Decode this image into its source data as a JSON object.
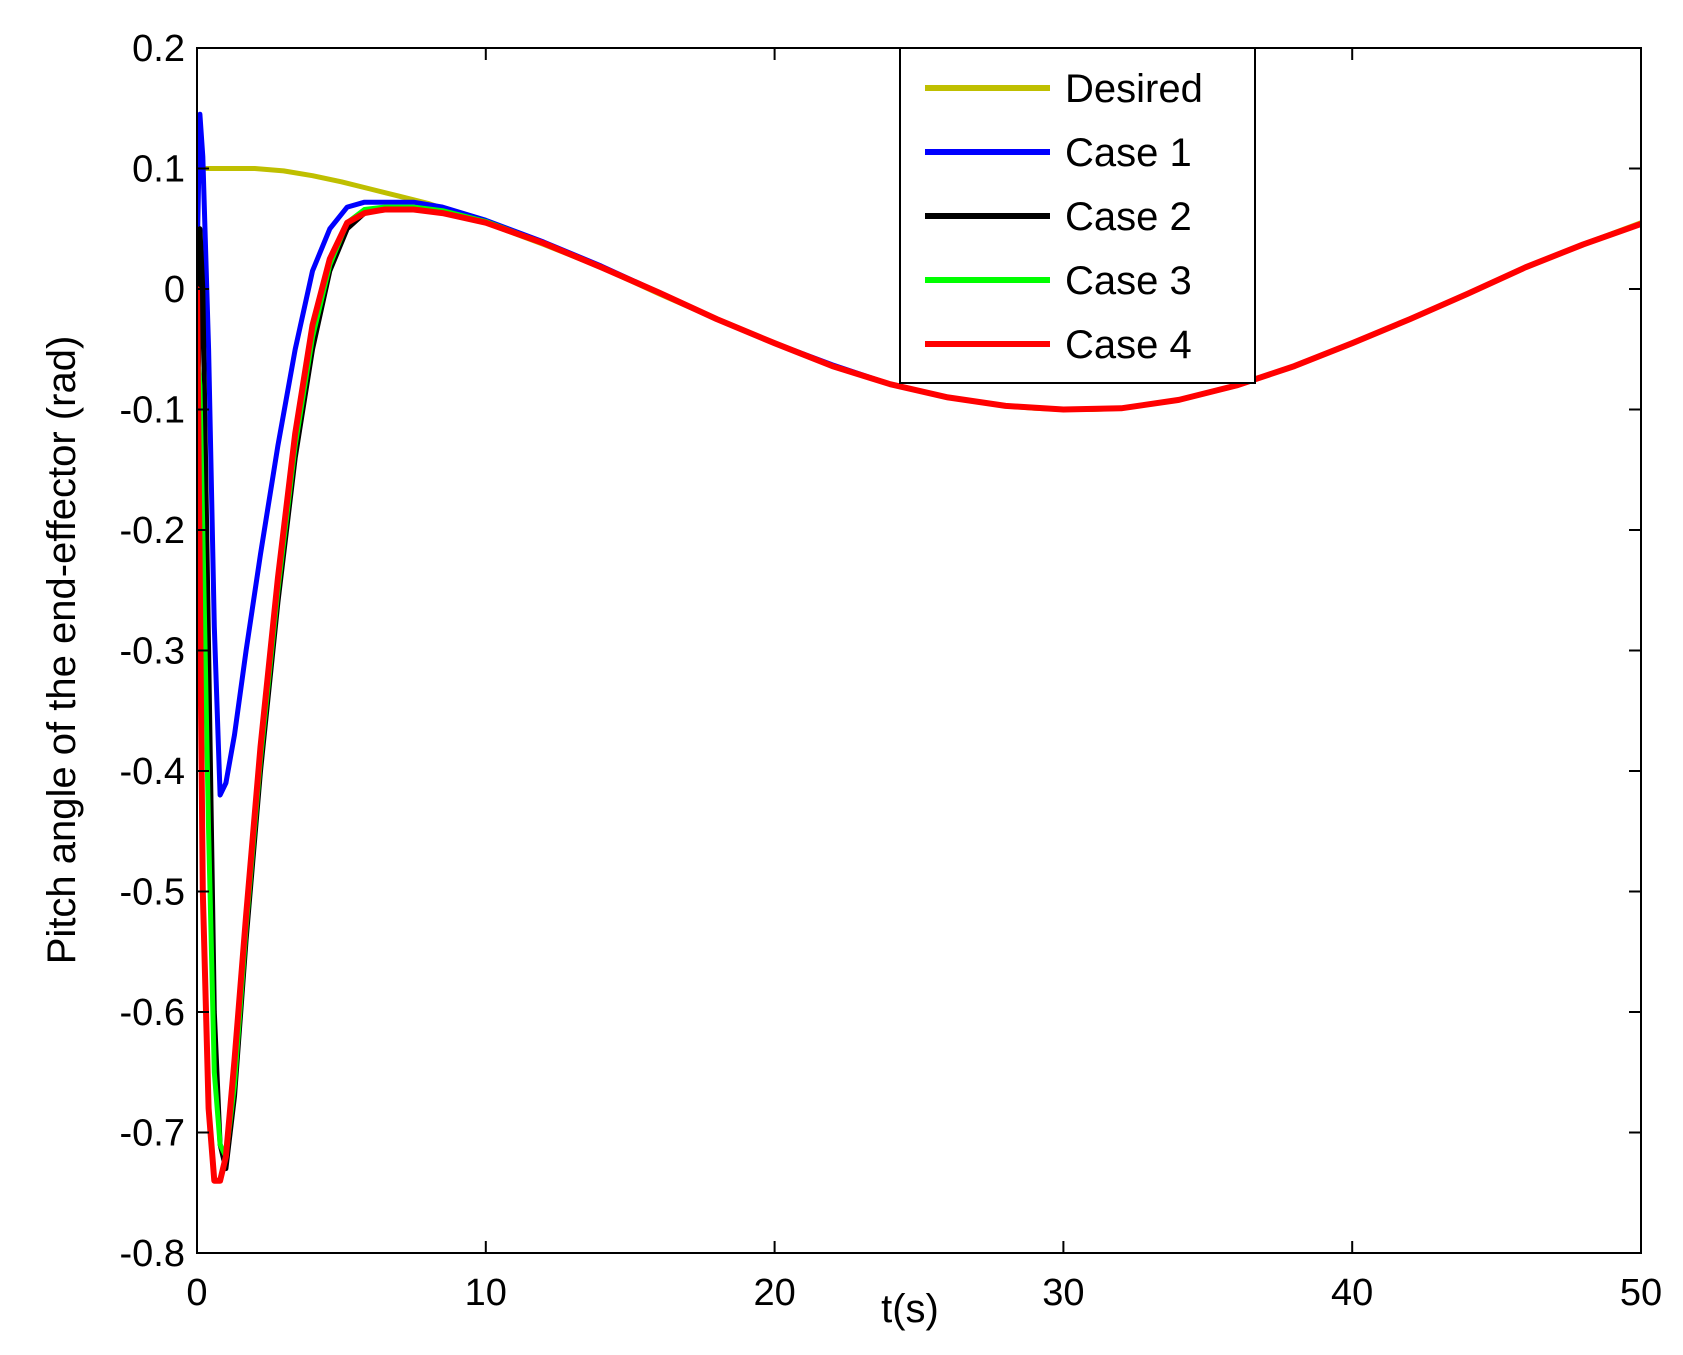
{
  "chart_data": {
    "type": "line",
    "xlabel": "t(s)",
    "ylabel": "Pitch angle of the end-effector (rad)",
    "xlim": [
      0,
      50
    ],
    "ylim": [
      -0.8,
      0.2
    ],
    "xticks": [
      "0",
      "10",
      "20",
      "30",
      "40",
      "50"
    ],
    "yticks": [
      "0.2",
      "0.1",
      "0",
      "-0.1",
      "-0.2",
      "-0.3",
      "-0.4",
      "-0.5",
      "-0.6",
      "-0.7",
      "-0.8"
    ],
    "grid": false,
    "legend_position": "top-center",
    "series": [
      {
        "name": "Desired",
        "color": "#bfbf00",
        "x": [
          0,
          1,
          2,
          3,
          4,
          5,
          6,
          7,
          8,
          9,
          10,
          12,
          14,
          16,
          18,
          20,
          22,
          24,
          26,
          28,
          29,
          30,
          31,
          32,
          34,
          36,
          38,
          40,
          42,
          44,
          46,
          48,
          50
        ],
        "y": [
          0.1,
          0.1,
          0.1,
          0.098,
          0.094,
          0.089,
          0.083,
          0.077,
          0.071,
          0.063,
          0.055,
          0.037,
          0.018,
          -0.004,
          -0.025,
          -0.045,
          -0.064,
          -0.079,
          -0.09,
          -0.097,
          -0.099,
          -0.1,
          -0.1,
          -0.099,
          -0.092,
          -0.08,
          -0.064,
          -0.045,
          -0.025,
          -0.004,
          0.018,
          0.037,
          0.055
        ]
      },
      {
        "name": "Case 1",
        "color": "#0000ff",
        "x": [
          0,
          0.1,
          0.2,
          0.4,
          0.6,
          0.8,
          1.0,
          1.3,
          1.7,
          2.2,
          2.8,
          3.4,
          4.0,
          4.6,
          5.2,
          5.8,
          6.5,
          7.5,
          8.5,
          10,
          12,
          14,
          16,
          18,
          20,
          22,
          24,
          26,
          28,
          30,
          32,
          34,
          36,
          38,
          40,
          42,
          44,
          46,
          48,
          50
        ],
        "y": [
          0.02,
          0.145,
          0.11,
          -0.05,
          -0.28,
          -0.42,
          -0.41,
          -0.37,
          -0.3,
          -0.22,
          -0.13,
          -0.05,
          0.015,
          0.05,
          0.068,
          0.072,
          0.072,
          0.072,
          0.068,
          0.057,
          0.039,
          0.019,
          -0.003,
          -0.025,
          -0.045,
          -0.063,
          -0.079,
          -0.09,
          -0.097,
          -0.1,
          -0.099,
          -0.092,
          -0.08,
          -0.064,
          -0.045,
          -0.025,
          -0.004,
          0.018,
          0.037,
          0.054
        ]
      },
      {
        "name": "Case 2",
        "color": "#000000",
        "x": [
          0,
          0.1,
          0.2,
          0.4,
          0.6,
          0.8,
          1.0,
          1.3,
          1.7,
          2.2,
          2.8,
          3.4,
          4.0,
          4.6,
          5.2,
          5.8,
          6.5,
          7.5,
          8.5,
          10,
          12,
          14,
          16,
          18,
          20,
          22,
          24,
          26,
          28,
          30,
          32,
          34,
          36,
          38,
          40,
          42,
          44,
          46,
          48,
          50
        ],
        "y": [
          -0.2,
          0.05,
          0.0,
          -0.3,
          -0.6,
          -0.71,
          -0.73,
          -0.67,
          -0.54,
          -0.4,
          -0.26,
          -0.14,
          -0.05,
          0.015,
          0.05,
          0.063,
          0.066,
          0.066,
          0.064,
          0.055,
          0.038,
          0.018,
          -0.003,
          -0.025,
          -0.045,
          -0.064,
          -0.079,
          -0.09,
          -0.097,
          -0.1,
          -0.099,
          -0.092,
          -0.08,
          -0.064,
          -0.045,
          -0.025,
          -0.004,
          0.018,
          0.037,
          0.054
        ]
      },
      {
        "name": "Case 3",
        "color": "#00ff00",
        "x": [
          0,
          0.1,
          0.2,
          0.4,
          0.6,
          0.8,
          1.0,
          1.3,
          1.7,
          2.2,
          2.8,
          3.4,
          4.0,
          4.6,
          5.2,
          5.8,
          6.5,
          7.5,
          8.5,
          10,
          12,
          14,
          16,
          18,
          20,
          22,
          24,
          26,
          28,
          30,
          32,
          34,
          36,
          38,
          40,
          42,
          44,
          46,
          48,
          50
        ],
        "y": [
          -0.05,
          -0.08,
          -0.2,
          -0.45,
          -0.65,
          -0.71,
          -0.72,
          -0.66,
          -0.53,
          -0.39,
          -0.25,
          -0.13,
          -0.04,
          0.02,
          0.055,
          0.066,
          0.068,
          0.068,
          0.065,
          0.056,
          0.038,
          0.018,
          -0.003,
          -0.025,
          -0.045,
          -0.064,
          -0.079,
          -0.09,
          -0.097,
          -0.1,
          -0.099,
          -0.092,
          -0.08,
          -0.064,
          -0.045,
          -0.025,
          -0.004,
          0.018,
          0.037,
          0.054
        ]
      },
      {
        "name": "Case 4",
        "color": "#ff0000",
        "x": [
          0,
          0.1,
          0.2,
          0.4,
          0.6,
          0.8,
          1.0,
          1.3,
          1.7,
          2.2,
          2.8,
          3.4,
          4.0,
          4.6,
          5.2,
          5.8,
          6.5,
          7.5,
          8.5,
          10,
          12,
          14,
          16,
          18,
          20,
          22,
          24,
          26,
          28,
          30,
          32,
          34,
          36,
          38,
          40,
          42,
          44,
          46,
          48,
          50
        ],
        "y": [
          0.0,
          -0.25,
          -0.5,
          -0.68,
          -0.74,
          -0.74,
          -0.72,
          -0.64,
          -0.52,
          -0.38,
          -0.24,
          -0.12,
          -0.03,
          0.025,
          0.055,
          0.063,
          0.066,
          0.066,
          0.063,
          0.055,
          0.038,
          0.018,
          -0.003,
          -0.025,
          -0.045,
          -0.064,
          -0.079,
          -0.09,
          -0.097,
          -0.1,
          -0.099,
          -0.092,
          -0.08,
          -0.064,
          -0.045,
          -0.025,
          -0.004,
          0.018,
          0.037,
          0.054
        ]
      }
    ]
  }
}
